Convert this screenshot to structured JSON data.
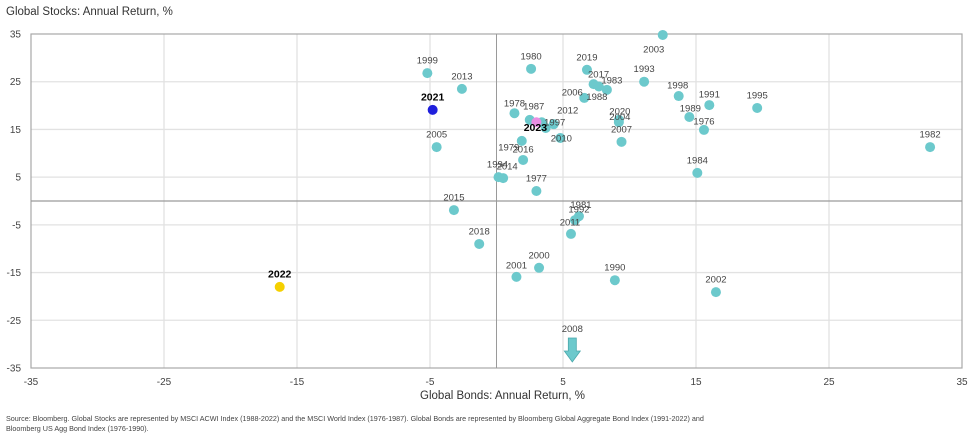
{
  "chart_data": {
    "type": "scatter",
    "title": "",
    "ylabel": "Global Stocks: Annual Return, %",
    "xlabel": "Global Bonds: Annual Return, %",
    "xlim": [
      -35,
      35
    ],
    "ylim": [
      -35,
      35
    ],
    "xticks": [
      -35,
      -25,
      -15,
      -5,
      5,
      15,
      25,
      35
    ],
    "yticks": [
      35,
      25,
      15,
      5,
      -5,
      -15,
      -25,
      -35
    ],
    "grid": true,
    "colors": {
      "default": "#6cc9cc",
      "highlight_2021": "#1f1fdc",
      "highlight_2022": "#f5d000",
      "highlight_2023": "#ea8fe3",
      "arrow": "#6cc9cc"
    },
    "points": [
      {
        "label": "1976",
        "x": 15.6,
        "y": 14.9
      },
      {
        "label": "1977",
        "x": 3.0,
        "y": 2.1
      },
      {
        "label": "1978",
        "x": 1.35,
        "y": 18.4
      },
      {
        "label": "1979",
        "x": 1.9,
        "y": 12.6
      },
      {
        "label": "1980",
        "x": 2.6,
        "y": 27.7
      },
      {
        "label": "1981",
        "x": 6.2,
        "y": -3.2
      },
      {
        "label": "1982",
        "x": 32.6,
        "y": 11.3
      },
      {
        "label": "1983",
        "x": 8.3,
        "y": 23.3
      },
      {
        "label": "1984",
        "x": 15.1,
        "y": 5.9
      },
      {
        "label": "1986",
        "x": 3.4,
        "y": 16.5
      },
      {
        "label": "1987",
        "x": 2.5,
        "y": 17.0
      },
      {
        "label": "1988",
        "x": 7.7,
        "y": 24.0
      },
      {
        "label": "1989",
        "x": 14.5,
        "y": 17.6
      },
      {
        "label": "1990",
        "x": 8.9,
        "y": -16.6
      },
      {
        "label": "1991",
        "x": 16.0,
        "y": 20.1
      },
      {
        "label": "1992",
        "x": 5.9,
        "y": -4.0
      },
      {
        "label": "1993",
        "x": 11.1,
        "y": 25.0
      },
      {
        "label": "1994",
        "x": 0.15,
        "y": 5.0
      },
      {
        "label": "1995",
        "x": 19.6,
        "y": 19.5
      },
      {
        "label": "1997",
        "x": 3.7,
        "y": 15.3
      },
      {
        "label": "1998",
        "x": 13.7,
        "y": 22.0
      },
      {
        "label": "1999",
        "x": -5.2,
        "y": 26.8
      },
      {
        "label": "2000",
        "x": 3.2,
        "y": -14.0
      },
      {
        "label": "2001",
        "x": 1.5,
        "y": -15.9
      },
      {
        "label": "2002",
        "x": 16.5,
        "y": -19.1
      },
      {
        "label": "2003",
        "x": 12.5,
        "y": 34.8
      },
      {
        "label": "2004",
        "x": 9.2,
        "y": 16.5
      },
      {
        "label": "2005",
        "x": -4.5,
        "y": 11.3
      },
      {
        "label": "2006",
        "x": 6.6,
        "y": 21.6
      },
      {
        "label": "2007",
        "x": 9.4,
        "y": 12.4
      },
      {
        "label": "2010",
        "x": 4.8,
        "y": 13.2
      },
      {
        "label": "2011",
        "x": 5.6,
        "y": -6.9
      },
      {
        "label": "2012",
        "x": 4.3,
        "y": 16.1
      },
      {
        "label": "2013",
        "x": -2.6,
        "y": 23.5
      },
      {
        "label": "2014",
        "x": 0.5,
        "y": 4.8
      },
      {
        "label": "2015",
        "x": -3.2,
        "y": -1.9
      },
      {
        "label": "2016",
        "x": 2.0,
        "y": 8.6
      },
      {
        "label": "2017",
        "x": 7.3,
        "y": 24.5
      },
      {
        "label": "2018",
        "x": -1.3,
        "y": -9.0
      },
      {
        "label": "2019",
        "x": 6.8,
        "y": 27.5
      },
      {
        "label": "2020",
        "x": 9.2,
        "y": 17.0
      },
      {
        "label": "2021",
        "x": -4.8,
        "y": 19.1,
        "highlight": "highlight_2021"
      },
      {
        "label": "2022",
        "x": -16.3,
        "y": -18.0,
        "highlight": "highlight_2022"
      },
      {
        "label": "2023",
        "x": 3.0,
        "y": 16.5,
        "highlight": "highlight_2023"
      }
    ],
    "offscale": [
      {
        "label": "2008",
        "x": 5.7,
        "direction": "down"
      }
    ]
  },
  "labels": {
    "y_axis_title": "Global Stocks: Annual Return, %",
    "x_axis_title": "Global Bonds: Annual Return, %",
    "source": "Source: Bloomberg. Global Stocks are represented by MSCI ACWI Index (1988-2022) and the MSCI World Index (1976-1987). Global Bonds are represented by Bloomberg Global Aggregate Bond Index (1991-2022) and Bloomberg US Agg Bond Index (1976-1990)."
  }
}
